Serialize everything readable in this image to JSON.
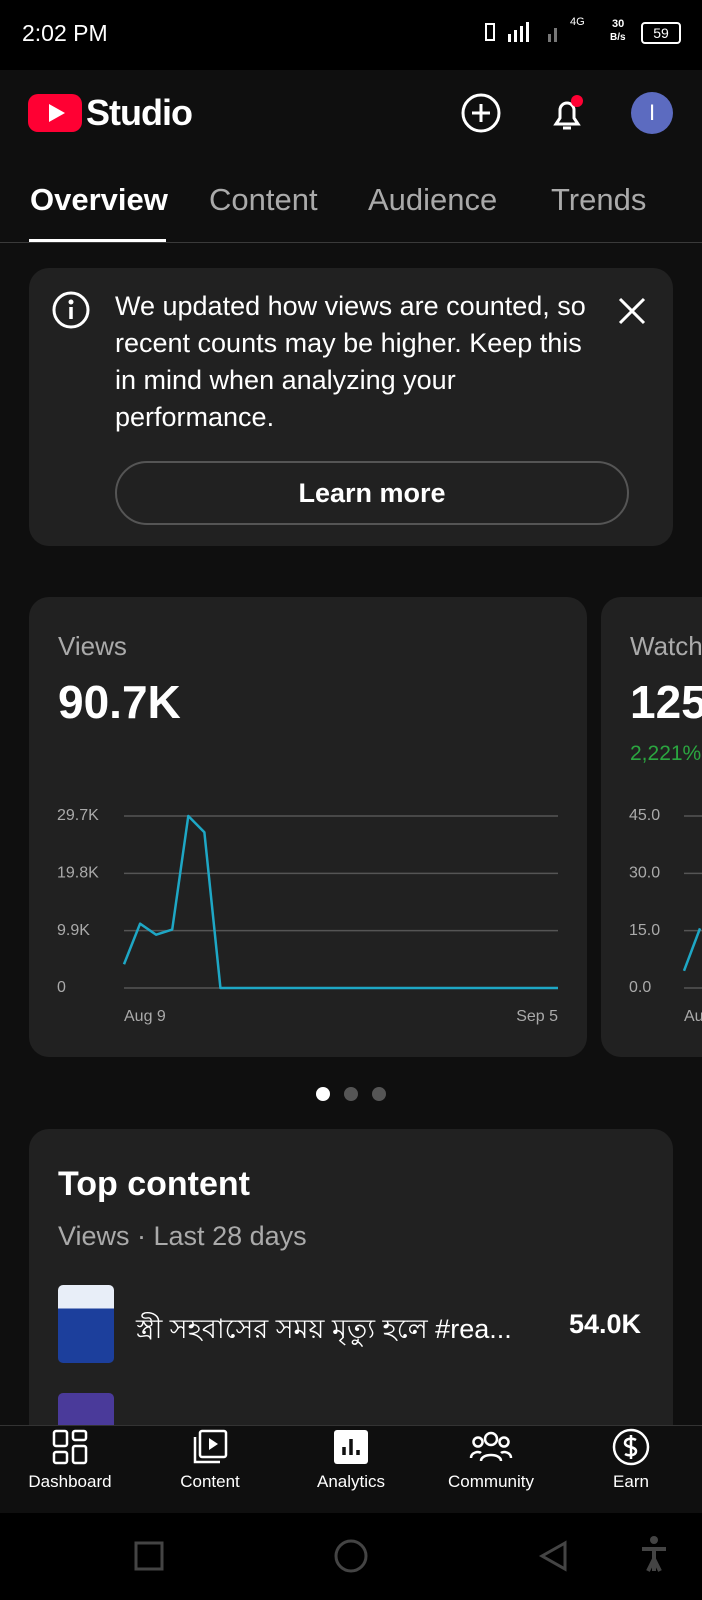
{
  "status_bar": {
    "time": "2:02 PM",
    "network": "4G",
    "speed": "30",
    "speed_unit": "B/s",
    "battery": "59"
  },
  "header": {
    "title": "Studio"
  },
  "tabs": [
    "Overview",
    "Content",
    "Audience",
    "Trends"
  ],
  "notice": {
    "text": "We updated how views are counted, so recent counts may be higher. Keep this in mind when analyzing your performance.",
    "button": "Learn more"
  },
  "views_card": {
    "label": "Views",
    "total": "90.7K",
    "chart_data": {
      "type": "line",
      "categories": [
        "Aug 9",
        null,
        null,
        null,
        null,
        null,
        null,
        null,
        null,
        null,
        null,
        null,
        null,
        null,
        null,
        null,
        null,
        null,
        null,
        null,
        null,
        null,
        null,
        null,
        null,
        null,
        null,
        "Sep 5"
      ],
      "series": [
        {
          "color": "#1ea7c5",
          "values": [
            4100,
            11100,
            9200,
            10100,
            29700,
            26900,
            0,
            0,
            0,
            0,
            0,
            0,
            0,
            0,
            0,
            0,
            0,
            0,
            0,
            0,
            0,
            0,
            0,
            0,
            0,
            0,
            0,
            0
          ]
        }
      ],
      "ylim": [
        0,
        29700
      ],
      "yticks": [
        0,
        {
          "value": 9900,
          "label": "9.9K"
        },
        {
          "value": 19800,
          "label": "19.8K"
        },
        {
          "value": 29700,
          "label": "29.7K"
        }
      ],
      "grid": true
    }
  },
  "watch_card": {
    "label": "Watch",
    "total": "125",
    "change": "2,221%",
    "chart_data": {
      "type": "line",
      "categories": [
        "Au",
        null
      ],
      "series": [
        {
          "color": "#1ea7c5",
          "values": [
            4.5,
            15.6
          ]
        }
      ],
      "ylim": [
        0,
        45
      ],
      "yticks": [
        {
          "value": 0,
          "label": "0.0"
        },
        {
          "value": 15,
          "label": "15.0"
        },
        {
          "value": 30,
          "label": "30.0"
        },
        {
          "value": 45,
          "label": "45.0"
        }
      ],
      "grid": true
    }
  },
  "top_content": {
    "title": "Top content",
    "subtitle": "Views · Last 28 days",
    "rows": [
      {
        "title": "স্ত্রী সহবাসের সময় মৃত্যু হলে #rea...",
        "views": "54.0K"
      }
    ]
  },
  "nav": [
    "Dashboard",
    "Content",
    "Analytics",
    "Community",
    "Earn"
  ]
}
